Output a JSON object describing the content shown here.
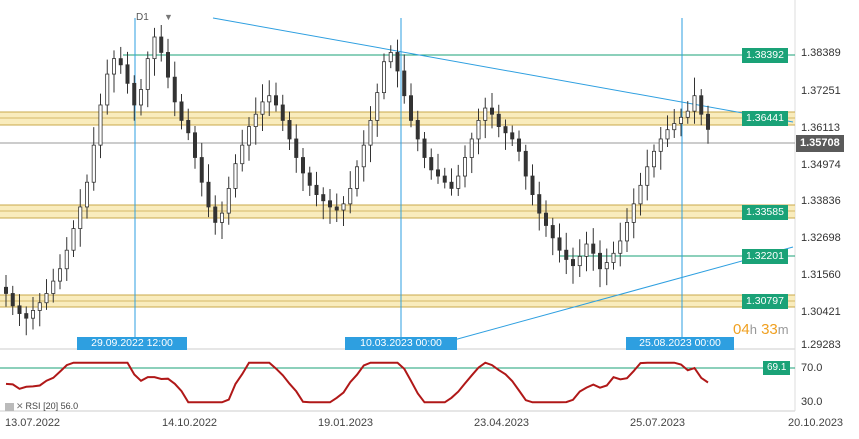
{
  "timeframe": "D1",
  "timeframe_menu_icon": "dropdown-triangle-icon",
  "price_axis": [
    "1.38389",
    "1.37251",
    "1.36113",
    "1.34974",
    "1.33836",
    "1.32698",
    "1.31560",
    "1.30421",
    "1.29283"
  ],
  "current_price": "1.35708",
  "level_labels": [
    "1.38392",
    "1.36441",
    "1.33585",
    "1.32201",
    "1.30797"
  ],
  "vertical_line_dates": [
    "29.09.2022 12:00",
    "10.03.2023 00:00",
    "25.08.2023 00:00"
  ],
  "countdown": {
    "hours": "04",
    "h_unit": "h",
    "minutes": "33",
    "m_unit": "m"
  },
  "rsi": {
    "label": "RSI",
    "period": "[20]",
    "value": "56.0",
    "line_value": "69.1",
    "axis": [
      "70.0",
      "30.0"
    ]
  },
  "x_axis": [
    "13.07.2022",
    "14.10.2022",
    "19.01.2023",
    "23.04.2023",
    "25.07.2023",
    "20.10.2023"
  ],
  "colors": {
    "candle": "#333333",
    "support_zone": "#f7e6a7",
    "zone_border": "#c9a84a",
    "level_line": "#1aa277",
    "trend_line": "#2e9fe0",
    "rsi_line": "#b01818",
    "current_price_tag": "#5a5a5a"
  },
  "chart_data": {
    "type": "candlestick",
    "ylim": [
      1.287,
      1.3925
    ],
    "closes": [
      1.304,
      1.3,
      1.2975,
      1.296,
      1.2985,
      1.301,
      1.304,
      1.308,
      1.312,
      1.318,
      1.325,
      1.332,
      1.34,
      1.352,
      1.365,
      1.375,
      1.38,
      1.378,
      1.372,
      1.365,
      1.37,
      1.38,
      1.387,
      1.382,
      1.374,
      1.366,
      1.36,
      1.356,
      1.348,
      1.34,
      1.332,
      1.327,
      1.33,
      1.338,
      1.346,
      1.352,
      1.358,
      1.362,
      1.366,
      1.368,
      1.365,
      1.36,
      1.354,
      1.348,
      1.343,
      1.339,
      1.336,
      1.334,
      1.332,
      1.331,
      1.333,
      1.338,
      1.345,
      1.352,
      1.36,
      1.369,
      1.379,
      1.382,
      1.376,
      1.368,
      1.36,
      1.354,
      1.348,
      1.344,
      1.342,
      1.34,
      1.338,
      1.342,
      1.348,
      1.354,
      1.36,
      1.364,
      1.362,
      1.358,
      1.356,
      1.354,
      1.35,
      1.342,
      1.336,
      1.33,
      1.326,
      1.322,
      1.318,
      1.315,
      1.313,
      1.316,
      1.32,
      1.317,
      1.312,
      1.314,
      1.317,
      1.321,
      1.327,
      1.333,
      1.339,
      1.345,
      1.35,
      1.354,
      1.357,
      1.359,
      1.361,
      1.363,
      1.368,
      1.362,
      1.3571
    ]
  }
}
